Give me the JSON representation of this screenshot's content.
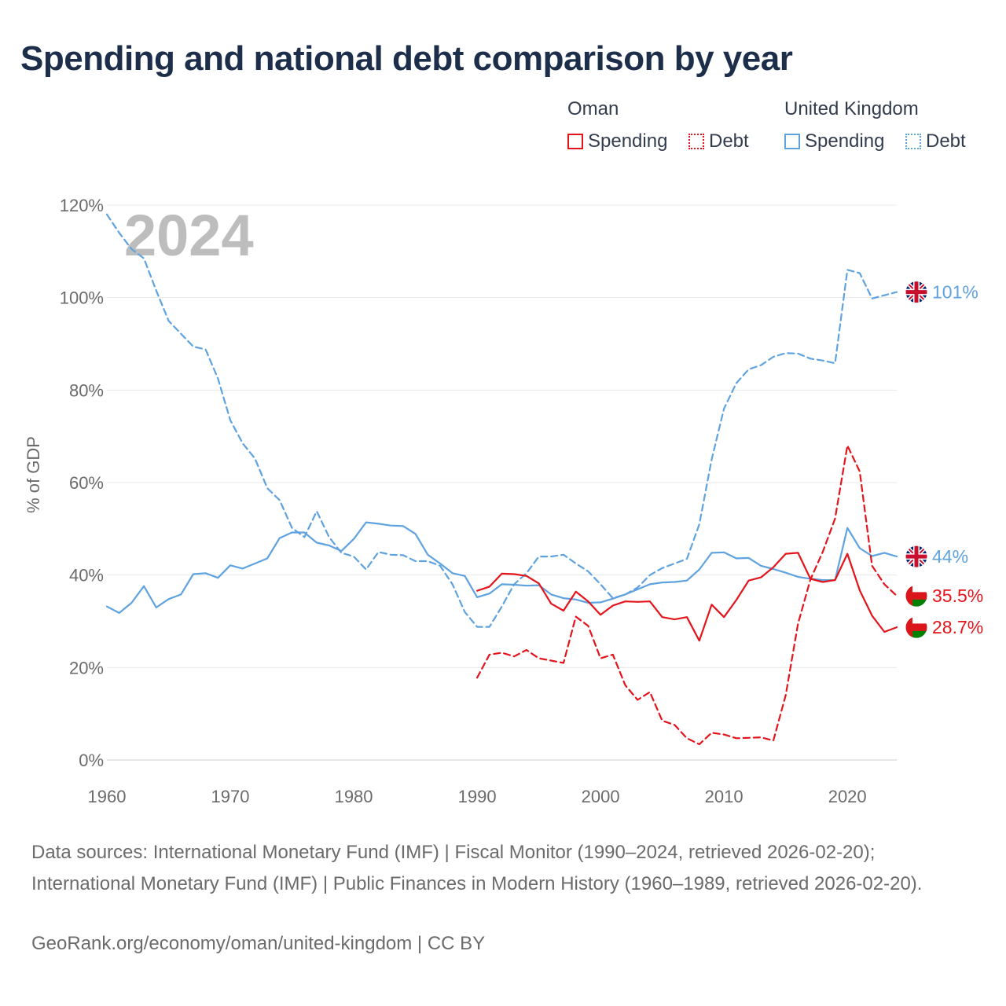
{
  "title": "Spending and national debt comparison by year",
  "legend": {
    "groups": [
      {
        "name": "Oman",
        "color": "#e3141b",
        "items": [
          "Spending",
          "Debt"
        ]
      },
      {
        "name": "United Kingdom",
        "color": "#5fa2e0",
        "items": [
          "Spending",
          "Debt"
        ]
      }
    ]
  },
  "footer": {
    "sources": "Data sources: International Monetary Fund (IMF) | Fiscal Monitor (1990–2024, retrieved 2026-02-20); International Monetary Fund (IMF) | Public Finances in Modern History (1960–1989, retrieved 2026-02-20).",
    "attribution": "GeoRank.org/economy/oman/united-kingdom | CC BY"
  },
  "chart_data": {
    "type": "line",
    "year_label": "2024",
    "ylabel": "% of GDP",
    "xlim": [
      1960,
      2024
    ],
    "ylim": [
      0,
      120
    ],
    "x_ticks": [
      "1960",
      "1970",
      "1980",
      "1990",
      "2000",
      "2010",
      "2020"
    ],
    "y_ticks": [
      "0%",
      "20%",
      "40%",
      "60%",
      "80%",
      "100%",
      "120%"
    ],
    "series": [
      {
        "name": "United Kingdom Debt",
        "country": "United Kingdom",
        "kind": "Debt",
        "color": "#5fa2e0",
        "dashed": true,
        "end_label": "101%",
        "start_year": 1960,
        "values": [
          118,
          114,
          110.5,
          108.5,
          101.5,
          95,
          92.2,
          89.4,
          88.8,
          82.5,
          73.5,
          68.5,
          65.2,
          58.8,
          56.2,
          50.2,
          48.2,
          53.8,
          48.2,
          44.8,
          44,
          41.2,
          45,
          44.4,
          44.3,
          43,
          43,
          42,
          38,
          32,
          28.8,
          28.8,
          33.2,
          38,
          40.4,
          44,
          44,
          44.4,
          42.5,
          40.8,
          38,
          35,
          35.8,
          37.3,
          40,
          41.5,
          42.5,
          43.5,
          51,
          65,
          76,
          81.5,
          84.5,
          85.4,
          87.2,
          88,
          87.9,
          86.8,
          86.4,
          85.8,
          106,
          105.3,
          99.8,
          100.5,
          101.2
        ]
      },
      {
        "name": "United Kingdom Spending",
        "country": "United Kingdom",
        "kind": "Spending",
        "color": "#5fa2e0",
        "dashed": false,
        "end_label": "44%",
        "start_year": 1960,
        "values": [
          33.2,
          31.8,
          34,
          37.6,
          33,
          34.8,
          35.8,
          40.2,
          40.4,
          39.4,
          42.1,
          41.4,
          42.5,
          43.6,
          48,
          49.2,
          49.2,
          47,
          46.4,
          45.2,
          47.8,
          51.4,
          51.1,
          50.7,
          50.6,
          48.9,
          44.4,
          42.5,
          40.4,
          39.8,
          35.2,
          36,
          38,
          37.9,
          37.7,
          37.8,
          35.8,
          35,
          34.7,
          34,
          34.1,
          34.9,
          35.8,
          36.9,
          38,
          38.4,
          38.5,
          38.8,
          41.2,
          44.8,
          44.9,
          43.6,
          43.7,
          42,
          41.3,
          40.5,
          39.6,
          39.2,
          38.9,
          38.9,
          50.2,
          45.8,
          44.1,
          44.8,
          44
        ]
      },
      {
        "name": "Oman Debt",
        "country": "Oman",
        "kind": "Debt",
        "color": "#e3141b",
        "dashed": true,
        "end_label": "35.5%",
        "start_year": 1990,
        "values": [
          17.8,
          22.8,
          23.2,
          22.4,
          23.8,
          22,
          21.5,
          21,
          31,
          29,
          22,
          22.8,
          16.2,
          13,
          14.7,
          8.5,
          7.6,
          4.7,
          3.4,
          5.9,
          5.5,
          4.7,
          4.8,
          4.9,
          4.2,
          14,
          29.5,
          39,
          45,
          52.2,
          68,
          62.4,
          42,
          38,
          35.5
        ]
      },
      {
        "name": "Oman Spending",
        "country": "Oman",
        "kind": "Spending",
        "color": "#e3141b",
        "dashed": false,
        "end_label": "28.7%",
        "start_year": 1990,
        "values": [
          36.6,
          37.5,
          40.3,
          40.2,
          39.8,
          38.2,
          33.8,
          32.3,
          36.4,
          34.3,
          31.4,
          33.4,
          34.3,
          34.2,
          34.3,
          30.9,
          30.4,
          30.9,
          25.8,
          33.6,
          30.9,
          34.6,
          38.8,
          39.5,
          41.7,
          44.6,
          44.8,
          39.2,
          38.5,
          38.9,
          44.6,
          36.7,
          31.2,
          27.7,
          28.7
        ]
      }
    ]
  }
}
